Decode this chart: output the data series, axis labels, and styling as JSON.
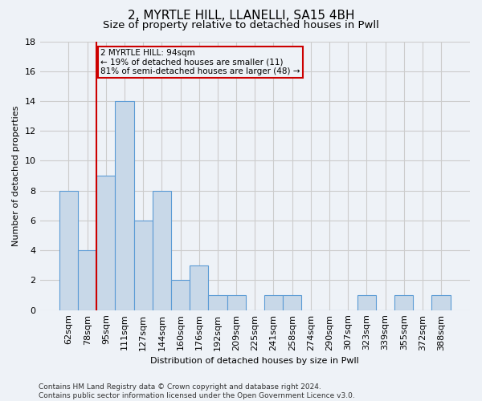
{
  "title1": "2, MYRTLE HILL, LLANELLI, SA15 4BH",
  "title2": "Size of property relative to detached houses in Pwll",
  "xlabel": "Distribution of detached houses by size in Pwll",
  "ylabel": "Number of detached properties",
  "footer": "Contains HM Land Registry data © Crown copyright and database right 2024.\nContains public sector information licensed under the Open Government Licence v3.0.",
  "bin_labels": [
    "62sqm",
    "78sqm",
    "95sqm",
    "111sqm",
    "127sqm",
    "144sqm",
    "160sqm",
    "176sqm",
    "192sqm",
    "209sqm",
    "225sqm",
    "241sqm",
    "258sqm",
    "274sqm",
    "290sqm",
    "307sqm",
    "323sqm",
    "339sqm",
    "355sqm",
    "372sqm",
    "388sqm"
  ],
  "values": [
    8,
    4,
    9,
    14,
    6,
    8,
    2,
    3,
    1,
    1,
    0,
    1,
    1,
    0,
    0,
    0,
    1,
    0,
    1,
    0,
    1
  ],
  "bar_color": "#c8d8e8",
  "bar_edge_color": "#5b9bd5",
  "property_label": "2 MYRTLE HILL: 94sqm",
  "annotation_line1": "← 19% of detached houses are smaller (11)",
  "annotation_line2": "81% of semi-detached houses are larger (48) →",
  "vline_color": "#cc0000",
  "vline_bin_index": 2,
  "annotation_box_color": "#cc0000",
  "ylim": [
    0,
    18
  ],
  "yticks": [
    0,
    2,
    4,
    6,
    8,
    10,
    12,
    14,
    16,
    18
  ],
  "grid_color": "#cccccc",
  "bg_color": "#eef2f7",
  "title1_fontsize": 11,
  "title2_fontsize": 9.5,
  "axis_fontsize": 8,
  "tick_fontsize": 8,
  "footer_fontsize": 6.5,
  "annotation_fontsize": 7.5
}
